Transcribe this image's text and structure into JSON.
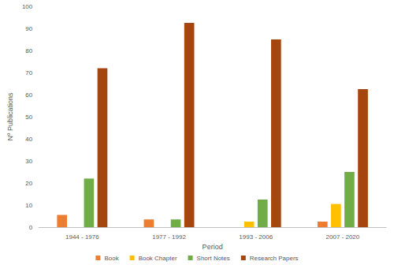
{
  "chart_data": {
    "type": "bar",
    "x_label": "Period",
    "y_label": "Nº Publications",
    "categories": [
      "1944 - 1976",
      "1977 - 1992",
      "1993 - 2006",
      "2007 - 2020"
    ],
    "series": [
      {
        "name": "Book",
        "color": "#ed7d31",
        "values": [
          5.5,
          3.5,
          0,
          2.5
        ]
      },
      {
        "name": "Book Chapter",
        "color": "#ffc000",
        "values": [
          0,
          0,
          2.5,
          10.5
        ]
      },
      {
        "name": "Short Notes",
        "color": "#70ad47",
        "values": [
          22,
          3.5,
          12.5,
          25
        ]
      },
      {
        "name": "Research Papers",
        "color": "#a5460e",
        "values": [
          72,
          92.5,
          85,
          62.5
        ]
      }
    ],
    "ylim": [
      0,
      100
    ],
    "yticks": [
      0,
      10,
      20,
      30,
      40,
      50,
      60,
      70,
      80,
      90,
      100
    ],
    "grid": false,
    "legend": "bottom"
  }
}
